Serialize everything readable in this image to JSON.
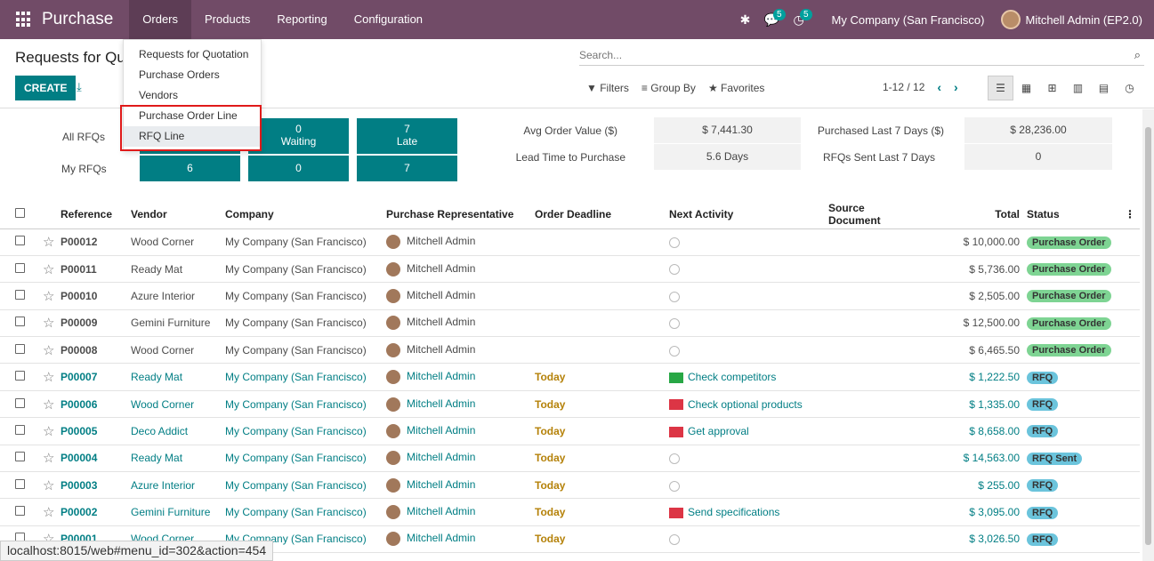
{
  "navbar": {
    "brand": "Purchase",
    "menu": [
      "Orders",
      "Products",
      "Reporting",
      "Configuration"
    ],
    "activity_badge": "5",
    "chat_badge": "5",
    "company": "My Company (San Francisco)",
    "user": "Mitchell Admin (EP2.0)",
    "color": "#714b67"
  },
  "orders_dropdown": {
    "items": [
      "Requests for Quotation",
      "Purchase Orders",
      "Vendors",
      "Purchase Order Line",
      "RFQ Line"
    ]
  },
  "control_panel": {
    "title": "Requests for Quo",
    "create_label": "CREATE",
    "search_placeholder": "Search...",
    "filters_label": "Filters",
    "groupby_label": "Group By",
    "favorites_label": "Favorites",
    "pager": "1-12 / 12"
  },
  "dashboard": {
    "row_labels": [
      "All RFQs",
      "My RFQs"
    ],
    "tiles_all": [
      {
        "value": "0",
        "label": "Waiting"
      },
      {
        "value": "7",
        "label": "Late"
      }
    ],
    "tiles_my": [
      "6",
      "0",
      "7"
    ],
    "kpis": [
      {
        "label": "Avg Order Value ($)",
        "value": "$ 7,441.30"
      },
      {
        "label": "Lead Time to Purchase",
        "value": "5.6  Days"
      },
      {
        "label": "Purchased Last 7 Days ($)",
        "value": "$ 28,236.00"
      },
      {
        "label": "RFQs Sent Last 7 Days",
        "value": "0"
      }
    ]
  },
  "table": {
    "headers": [
      "Reference",
      "Vendor",
      "Company",
      "Purchase Representative",
      "Order Deadline",
      "Next Activity",
      "Source Document",
      "Total",
      "Status"
    ],
    "rows": [
      {
        "ref": "P00012",
        "vendor": "Wood Corner",
        "company": "My Company (San Francisco)",
        "rep": "Mitchell Admin",
        "deadline": "",
        "activity": "",
        "total": "$ 10,000.00",
        "status": "Purchase Order",
        "kind": "po"
      },
      {
        "ref": "P00011",
        "vendor": "Ready Mat",
        "company": "My Company (San Francisco)",
        "rep": "Mitchell Admin",
        "deadline": "",
        "activity": "",
        "total": "$ 5,736.00",
        "status": "Purchase Order",
        "kind": "po"
      },
      {
        "ref": "P00010",
        "vendor": "Azure Interior",
        "company": "My Company (San Francisco)",
        "rep": "Mitchell Admin",
        "deadline": "",
        "activity": "",
        "total": "$ 2,505.00",
        "status": "Purchase Order",
        "kind": "po"
      },
      {
        "ref": "P00009",
        "vendor": "Gemini Furniture",
        "company": "My Company (San Francisco)",
        "rep": "Mitchell Admin",
        "deadline": "",
        "activity": "",
        "total": "$ 12,500.00",
        "status": "Purchase Order",
        "kind": "po"
      },
      {
        "ref": "P00008",
        "vendor": "Wood Corner",
        "company": "My Company (San Francisco)",
        "rep": "Mitchell Admin",
        "deadline": "",
        "activity": "",
        "total": "$ 6,465.50",
        "status": "Purchase Order",
        "kind": "po"
      },
      {
        "ref": "P00007",
        "vendor": "Ready Mat",
        "company": "My Company (San Francisco)",
        "rep": "Mitchell Admin",
        "deadline": "Today",
        "activity": "Check competitors",
        "activity_color": "#28a745",
        "total": "$ 1,222.50",
        "status": "RFQ",
        "kind": "rfq"
      },
      {
        "ref": "P00006",
        "vendor": "Wood Corner",
        "company": "My Company (San Francisco)",
        "rep": "Mitchell Admin",
        "deadline": "Today",
        "activity": "Check optional products",
        "activity_color": "#dc3545",
        "total": "$ 1,335.00",
        "status": "RFQ",
        "kind": "rfq"
      },
      {
        "ref": "P00005",
        "vendor": "Deco Addict",
        "company": "My Company (San Francisco)",
        "rep": "Mitchell Admin",
        "deadline": "Today",
        "activity": "Get approval",
        "activity_color": "#dc3545",
        "total": "$ 8,658.00",
        "status": "RFQ",
        "kind": "rfq"
      },
      {
        "ref": "P00004",
        "vendor": "Ready Mat",
        "company": "My Company (San Francisco)",
        "rep": "Mitchell Admin",
        "deadline": "Today",
        "activity": "",
        "total": "$ 14,563.00",
        "status": "RFQ Sent",
        "kind": "rfq"
      },
      {
        "ref": "P00003",
        "vendor": "Azure Interior",
        "company": "My Company (San Francisco)",
        "rep": "Mitchell Admin",
        "deadline": "Today",
        "activity": "",
        "total": "$ 255.00",
        "status": "RFQ",
        "kind": "rfq"
      },
      {
        "ref": "P00002",
        "vendor": "Gemini Furniture",
        "company": "My Company (San Francisco)",
        "rep": "Mitchell Admin",
        "deadline": "Today",
        "activity": "Send specifications",
        "activity_color": "#dc3545",
        "total": "$ 3,095.00",
        "status": "RFQ",
        "kind": "rfq"
      },
      {
        "ref": "P00001",
        "vendor": "Wood Corner",
        "company": "My Company (San Francisco)",
        "rep": "Mitchell Admin",
        "deadline": "Today",
        "activity": "",
        "total": "$ 3,026.50",
        "status": "RFQ",
        "kind": "rfq"
      }
    ]
  },
  "status_url": "localhost:8015/web#menu_id=302&action=454"
}
